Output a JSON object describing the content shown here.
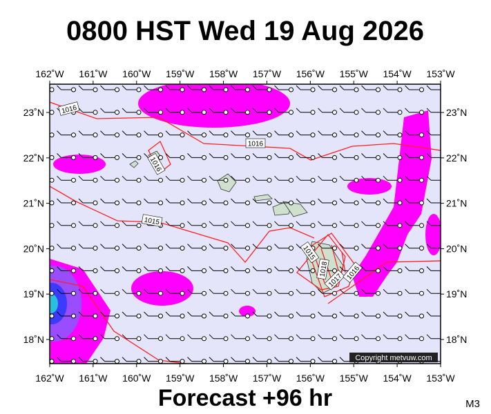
{
  "header": {
    "title": "0800 HST Wed 19 Aug 2026"
  },
  "map": {
    "copyright": "Copyright metvuw.com",
    "lon_labels": [
      "162˚W",
      "161˚W",
      "160˚W",
      "159˚W",
      "158˚W",
      "157˚W",
      "156˚W",
      "155˚W",
      "154˚W",
      "153˚W"
    ],
    "lat_labels": [
      "23˚N",
      "22˚N",
      "21˚N",
      "20˚N",
      "19˚N",
      "18˚N"
    ],
    "isobar_labels": [
      "1016",
      "1016",
      "1016",
      "1015",
      "1015",
      "1018",
      "1017",
      "1016"
    ]
  },
  "footer": {
    "forecast": "Forecast +96 hr",
    "code": "M3"
  }
}
